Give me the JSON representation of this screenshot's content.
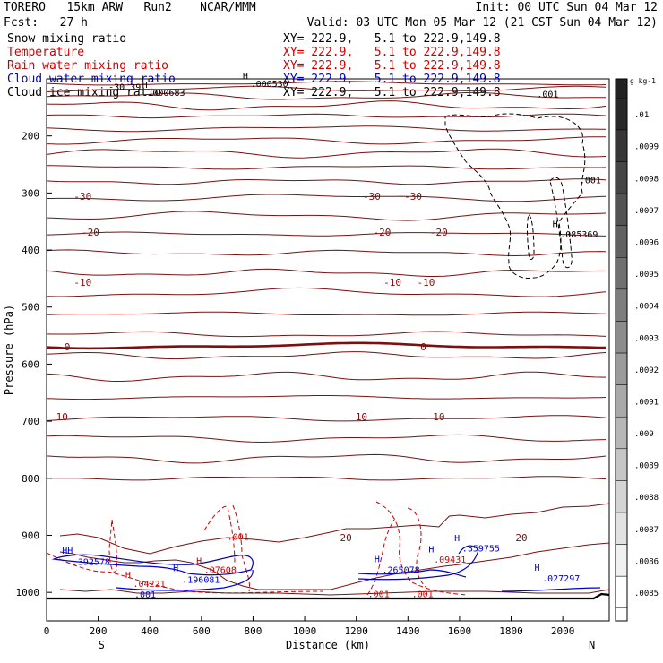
{
  "header": {
    "model": "TORERO   15km ARW   Run2    NCAR/MMM",
    "init": "Init: 00 UTC Sun 04 Mar 12",
    "fcst": "Fcst:   27 h",
    "valid": "Valid: 03 UTC Mon 05 Mar 12 (21 CST Sun 04 Mar 12)"
  },
  "legend": [
    {
      "field": "Snow mixing ratio",
      "xy": "XY= 222.9,   5.1 to 222.9,149.8",
      "color": "#000000"
    },
    {
      "field": "Temperature",
      "xy": "XY= 222.9,   5.1 to 222.9,149.8",
      "color": "#cc0000"
    },
    {
      "field": "Rain water mixing ratio",
      "xy": "XY= 222.9,   5.1 to 222.9,149.8",
      "color": "#cc0000"
    },
    {
      "field": "Cloud water mixing ratio",
      "xy": "XY= 222.9,   5.1 to 222.9,149.8",
      "color": "#0000cc"
    },
    {
      "field": "Cloud ice mixing ratio",
      "xy": "XY= 222.9,   5.1 to 222.9,149.8",
      "color": "#000000"
    }
  ],
  "chart_data": {
    "type": "cross-section contour",
    "xlabel": "Distance (km)",
    "ylabel": "Pressure (hPa)",
    "xlim": [
      0,
      2180
    ],
    "ylim": [
      1050,
      100
    ],
    "x_ticks": [
      "0",
      "200",
      "400",
      "600",
      "800",
      "1000",
      "1200",
      "1400",
      "1600",
      "1800",
      "2000"
    ],
    "y_ticks": [
      "200",
      "300",
      "400",
      "500",
      "600",
      "700",
      "800",
      "900",
      "1000"
    ],
    "end_labels": {
      "left": "S",
      "right": "N"
    },
    "colorbar": {
      "unit": "g kg-1",
      "labels": [
        ".01",
        ".0099",
        ".0098",
        ".0097",
        ".0096",
        ".0095",
        ".0094",
        ".0093",
        ".0092",
        ".0091",
        ".009",
        ".0089",
        ".0088",
        ".0087",
        ".0086",
        ".0085"
      ]
    },
    "temperature_contours": [
      {
        "label": "-30",
        "x": [
          140,
          1260,
          1420
        ]
      },
      {
        "label": "-20",
        "x": [
          170,
          1300,
          1520
        ]
      },
      {
        "label": "-10",
        "x": [
          140,
          1340,
          1470
        ]
      },
      {
        "label": "0",
        "x": [
          80,
          1460
        ]
      },
      {
        "label": "10",
        "x": [
          60,
          1220,
          1520
        ]
      },
      {
        "label": "20",
        "x": [
          1160,
          1840
        ]
      }
    ],
    "annotations": [
      {
        "text": "-30 39",
        "x": 240,
        "p": 120,
        "color": "#000000"
      },
      {
        "text": "H",
        "x": 370,
        "p": 116,
        "color": "#000000"
      },
      {
        "text": ".000683",
        "x": 390,
        "p": 130,
        "color": "#000000"
      },
      {
        "text": "H",
        "x": 760,
        "p": 100,
        "color": "#000000"
      },
      {
        "text": ".000530",
        "x": 790,
        "p": 114,
        "color": "#000000"
      },
      {
        "text": ".001",
        "x": 1900,
        "p": 132,
        "color": "#000000"
      },
      {
        "text": ".001",
        "x": 2065,
        "p": 283,
        "color": "#000000"
      },
      {
        "text": "H",
        "x": 1960,
        "p": 360,
        "color": "#000000"
      },
      {
        "text": ".085369",
        "x": 1990,
        "p": 378,
        "color": "#000000"
      },
      {
        "text": "HH",
        "x": 60,
        "p": 932,
        "color": "#0000cc"
      },
      {
        "text": ".392578",
        "x": 100,
        "p": 952,
        "color": "#0000cc"
      },
      {
        "text": "H",
        "x": 305,
        "p": 975,
        "color": "#cc0000"
      },
      {
        "text": ".04221",
        "x": 335,
        "p": 990,
        "color": "#cc0000"
      },
      {
        "text": ".001",
        "x": 340,
        "p": 1009,
        "color": "#0000cc"
      },
      {
        "text": "H",
        "x": 490,
        "p": 963,
        "color": "#0000cc"
      },
      {
        "text": ".196081",
        "x": 525,
        "p": 983,
        "color": "#0000cc"
      },
      {
        "text": "H",
        "x": 580,
        "p": 950,
        "color": "#cc0000"
      },
      {
        "text": ".07608",
        "x": 610,
        "p": 966,
        "color": "#cc0000"
      },
      {
        "text": ".001",
        "x": 700,
        "p": 908,
        "color": "#cc0000"
      },
      {
        "text": "H",
        "x": 1270,
        "p": 947,
        "color": "#0000cc"
      },
      {
        "text": ".265078",
        "x": 1300,
        "p": 966,
        "color": "#0000cc"
      },
      {
        "text": "H",
        "x": 1480,
        "p": 930,
        "color": "#0000cc"
      },
      {
        "text": ".09431",
        "x": 1500,
        "p": 948,
        "color": "#cc0000"
      },
      {
        "text": "H",
        "x": 1580,
        "p": 910,
        "color": "#0000cc"
      },
      {
        "text": ".359755",
        "x": 1610,
        "p": 928,
        "color": "#0000cc"
      },
      {
        "text": "H",
        "x": 1890,
        "p": 962,
        "color": "#0000cc"
      },
      {
        "text": ".027297",
        "x": 1920,
        "p": 981,
        "color": "#0000cc"
      },
      {
        "text": ".001",
        "x": 1245,
        "p": 1008,
        "color": "#cc0000"
      },
      {
        "text": ".001",
        "x": 1415,
        "p": 1008,
        "color": "#cc0000"
      }
    ]
  }
}
